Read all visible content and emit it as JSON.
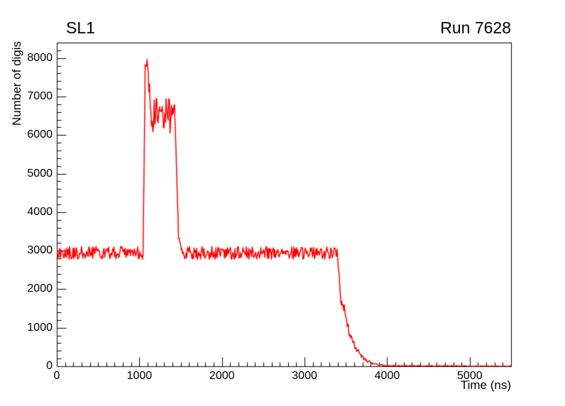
{
  "chart_data": {
    "type": "line",
    "title": "SL1",
    "annotation": "Run 7628",
    "xlabel": "Time (ns)",
    "ylabel": "Number of digis",
    "xlim": [
      0,
      5500
    ],
    "ylim": [
      0,
      8400
    ],
    "xticks": [
      0,
      1000,
      2000,
      3000,
      4000,
      5000
    ],
    "yticks": [
      0,
      1000,
      2000,
      3000,
      4000,
      5000,
      6000,
      7000,
      8000
    ],
    "x_minor_step": 100,
    "y_minor_step": 200,
    "line_color": "#ff0000",
    "axis_color": "#000000",
    "background": "#ffffff",
    "grid": false,
    "seed": 7628,
    "sample_step_ns": 8,
    "segments": [
      {
        "x0": 0,
        "x1": 1040,
        "y0": 2950,
        "y1": 2950,
        "noise": 170
      },
      {
        "x0": 1040,
        "x1": 1065,
        "y0": 3000,
        "y1": 7400,
        "noise": 120
      },
      {
        "x0": 1065,
        "x1": 1095,
        "y0": 7800,
        "y1": 8050,
        "noise": 150
      },
      {
        "x0": 1095,
        "x1": 1135,
        "y0": 7700,
        "y1": 6800,
        "noise": 240
      },
      {
        "x0": 1135,
        "x1": 1390,
        "y0": 6550,
        "y1": 6500,
        "noise": 450
      },
      {
        "x0": 1390,
        "x1": 1425,
        "y0": 6700,
        "y1": 6850,
        "noise": 220
      },
      {
        "x0": 1425,
        "x1": 1470,
        "y0": 6600,
        "y1": 3400,
        "noise": 160
      },
      {
        "x0": 1470,
        "x1": 1530,
        "y0": 3250,
        "y1": 2980,
        "noise": 140
      },
      {
        "x0": 1530,
        "x1": 3390,
        "y0": 2950,
        "y1": 2950,
        "noise": 170
      },
      {
        "x0": 3390,
        "x1": 3430,
        "y0": 2950,
        "y1": 2050,
        "noise": 120
      },
      {
        "x0": 3430,
        "x1": 3480,
        "y0": 1750,
        "y1": 1600,
        "noise": 200
      },
      {
        "x0": 3480,
        "x1": 3530,
        "y0": 1450,
        "y1": 950,
        "noise": 120
      },
      {
        "x0": 3530,
        "x1": 3610,
        "y0": 900,
        "y1": 520,
        "noise": 90
      },
      {
        "x0": 3610,
        "x1": 3710,
        "y0": 500,
        "y1": 210,
        "noise": 60
      },
      {
        "x0": 3710,
        "x1": 3830,
        "y0": 200,
        "y1": 80,
        "noise": 40
      },
      {
        "x0": 3830,
        "x1": 3960,
        "y0": 70,
        "y1": 30,
        "noise": 18
      },
      {
        "x0": 3960,
        "x1": 5500,
        "y0": 22,
        "y1": 8,
        "noise": 10
      }
    ]
  }
}
